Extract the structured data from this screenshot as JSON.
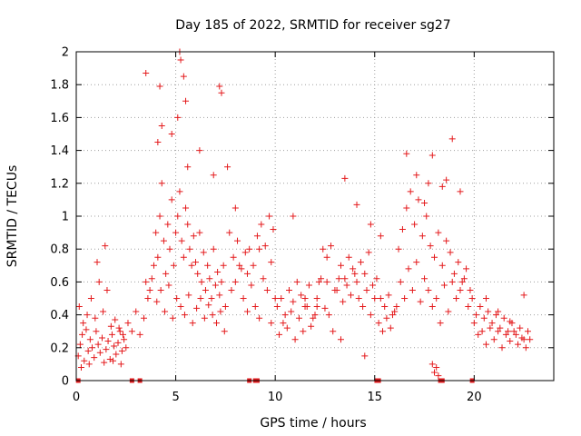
{
  "chart_data": {
    "type": "scatter",
    "title": "Day 185 of 2022, SRMTID for receiver sg27",
    "xlabel": "GPS time / hours",
    "ylabel": "SRMTID / TECUs",
    "xlim": [
      0,
      24
    ],
    "ylim": [
      0,
      2
    ],
    "xticks": [
      0,
      5,
      10,
      15,
      20
    ],
    "xtick_labels": [
      "0",
      "5",
      "10",
      "15",
      "20"
    ],
    "yticks": [
      0,
      0.2,
      0.4,
      0.6,
      0.8,
      1,
      1.2,
      1.4,
      1.6,
      1.8,
      2
    ],
    "ytick_labels": [
      "0",
      "0.2",
      "0.4",
      "0.6",
      "0.8",
      "1",
      "1.2",
      "1.4",
      "1.6",
      "1.8",
      "2"
    ],
    "grid": true,
    "marker": "+",
    "series": [
      {
        "name": "SRMTID",
        "color": "#e41a1c",
        "x": [
          0.1,
          0.2,
          0.3,
          0.4,
          0.5,
          0.6,
          0.7,
          0.8,
          0.9,
          1.0,
          1.1,
          1.2,
          1.3,
          1.4,
          1.5,
          1.6,
          1.7,
          1.8,
          1.9,
          2.0,
          2.1,
          2.2,
          2.3,
          2.4,
          2.5,
          0.15,
          0.35,
          0.55,
          0.75,
          0.95,
          1.15,
          1.35,
          1.55,
          1.75,
          1.95,
          2.15,
          2.35,
          0.25,
          0.65,
          1.05,
          1.45,
          1.85,
          2.25,
          2.6,
          2.8,
          3.0,
          3.2,
          3.4,
          3.5,
          3.7,
          3.9,
          4.0,
          4.1,
          4.2,
          4.3,
          4.4,
          4.5,
          4.6,
          4.7,
          4.8,
          4.9,
          5.0,
          5.1,
          5.2,
          5.3,
          5.4,
          5.5,
          5.6,
          5.7,
          5.8,
          5.9,
          6.0,
          6.1,
          6.2,
          6.3,
          6.4,
          6.5,
          6.6,
          6.7,
          6.8,
          6.9,
          7.0,
          7.1,
          7.2,
          7.3,
          7.4,
          7.5,
          3.6,
          3.8,
          4.05,
          4.25,
          4.45,
          4.65,
          4.85,
          5.05,
          5.25,
          5.45,
          5.65,
          5.85,
          6.05,
          6.25,
          6.45,
          6.65,
          6.85,
          7.05,
          7.25,
          7.45,
          3.5,
          4.2,
          5.2,
          5.25,
          5.4,
          5.5,
          7.2,
          7.3,
          4.1,
          4.3,
          4.8,
          5.1,
          5.6,
          6.2,
          6.9,
          7.6,
          7.8,
          8.0,
          8.2,
          8.4,
          8.6,
          8.8,
          9.0,
          9.2,
          9.4,
          9.6,
          9.8,
          10.0,
          7.7,
          7.9,
          8.1,
          8.3,
          8.5,
          8.7,
          8.9,
          9.1,
          9.3,
          9.5,
          9.7,
          9.9,
          8.0,
          8.6,
          9.2,
          9.8,
          10.1,
          10.3,
          10.5,
          10.7,
          10.9,
          11.1,
          11.3,
          11.5,
          11.7,
          11.9,
          12.1,
          12.3,
          12.5,
          12.7,
          12.9,
          10.2,
          10.4,
          10.6,
          10.8,
          11.0,
          11.2,
          11.4,
          11.6,
          11.8,
          12.0,
          12.2,
          12.4,
          12.6,
          12.8,
          10.9,
          11.5,
          12.1,
          12.6,
          13.0,
          13.2,
          13.4,
          13.6,
          13.8,
          14.0,
          14.2,
          14.4,
          14.6,
          14.8,
          15.0,
          15.2,
          15.4,
          15.6,
          15.8,
          16.0,
          13.1,
          13.3,
          13.5,
          13.7,
          13.9,
          14.1,
          14.3,
          14.5,
          14.7,
          14.9,
          15.1,
          15.3,
          15.5,
          15.7,
          15.9,
          13.5,
          14.1,
          14.8,
          15.3,
          13.3,
          14.5,
          16.1,
          16.3,
          16.5,
          16.7,
          16.9,
          17.1,
          17.3,
          17.5,
          17.7,
          17.9,
          18.1,
          18.3,
          18.5,
          18.7,
          18.9,
          19.1,
          19.3,
          19.5,
          19.7,
          19.9,
          16.2,
          16.4,
          16.6,
          16.8,
          17.0,
          17.2,
          17.4,
          17.6,
          17.8,
          18.0,
          18.2,
          18.4,
          18.6,
          18.8,
          19.0,
          19.2,
          19.4,
          19.6,
          19.8,
          16.6,
          17.1,
          17.5,
          17.7,
          17.9,
          18.4,
          18.6,
          18.9,
          19.3,
          17.9,
          18.0,
          18.1,
          18.2,
          20.0,
          20.2,
          20.4,
          20.6,
          20.8,
          21.0,
          21.2,
          21.4,
          21.6,
          21.8,
          22.0,
          22.2,
          22.4,
          22.6,
          22.8,
          20.1,
          20.3,
          20.5,
          20.7,
          20.9,
          21.1,
          21.3,
          21.5,
          21.7,
          21.9,
          22.1,
          22.3,
          22.5,
          22.7,
          20.6,
          21.2,
          21.8,
          22.5
        ],
        "y": [
          0.15,
          0.22,
          0.28,
          0.12,
          0.31,
          0.18,
          0.25,
          0.2,
          0.14,
          0.3,
          0.22,
          0.17,
          0.26,
          0.11,
          0.19,
          0.24,
          0.13,
          0.28,
          0.21,
          0.16,
          0.23,
          0.3,
          0.18,
          0.25,
          0.2,
          0.45,
          0.35,
          0.4,
          0.5,
          0.38,
          0.6,
          0.42,
          0.55,
          0.33,
          0.37,
          0.32,
          0.28,
          0.08,
          0.1,
          0.72,
          0.82,
          0.12,
          0.1,
          0.35,
          0.3,
          0.42,
          0.28,
          0.38,
          0.6,
          0.55,
          0.7,
          0.9,
          0.75,
          1.0,
          1.2,
          0.85,
          0.65,
          0.95,
          0.8,
          1.1,
          0.7,
          0.9,
          1.0,
          1.15,
          0.85,
          0.75,
          1.05,
          0.95,
          0.8,
          0.7,
          0.88,
          0.72,
          0.65,
          0.9,
          0.6,
          0.78,
          0.55,
          0.7,
          0.62,
          0.5,
          0.8,
          0.58,
          0.66,
          0.52,
          0.6,
          0.7,
          0.45,
          0.5,
          0.62,
          0.48,
          0.55,
          0.42,
          0.58,
          0.38,
          0.5,
          0.45,
          0.4,
          0.52,
          0.35,
          0.44,
          0.5,
          0.38,
          0.46,
          0.4,
          0.35,
          0.42,
          0.3,
          1.87,
          1.79,
          2.0,
          1.95,
          1.85,
          1.7,
          1.79,
          1.75,
          1.45,
          1.55,
          1.5,
          1.6,
          1.3,
          1.4,
          1.25,
          1.3,
          0.55,
          0.6,
          0.7,
          0.5,
          0.65,
          0.58,
          0.45,
          0.8,
          0.62,
          0.55,
          0.72,
          0.5,
          0.9,
          0.75,
          0.85,
          0.68,
          0.78,
          0.8,
          0.7,
          0.88,
          0.95,
          0.82,
          1.0,
          0.92,
          1.05,
          0.42,
          0.38,
          0.35,
          0.45,
          0.5,
          0.4,
          0.55,
          0.48,
          0.6,
          0.52,
          0.45,
          0.58,
          0.38,
          0.5,
          0.62,
          0.44,
          0.4,
          0.3,
          0.28,
          0.35,
          0.32,
          0.42,
          0.25,
          0.38,
          0.3,
          0.45,
          0.33,
          0.4,
          0.6,
          0.8,
          0.75,
          0.82,
          1.0,
          0.5,
          0.45,
          0.6,
          0.55,
          0.62,
          0.48,
          0.58,
          0.52,
          0.65,
          0.5,
          0.45,
          0.55,
          0.4,
          0.5,
          0.35,
          0.3,
          0.38,
          0.32,
          0.42,
          0.55,
          0.7,
          0.62,
          0.75,
          0.68,
          0.6,
          0.72,
          0.65,
          0.78,
          0.58,
          0.62,
          0.5,
          0.45,
          0.52,
          0.4,
          1.23,
          1.07,
          0.95,
          0.88,
          0.25,
          0.15,
          0.45,
          0.6,
          0.5,
          0.68,
          0.55,
          0.72,
          0.48,
          0.62,
          0.55,
          0.45,
          0.5,
          0.35,
          0.58,
          0.42,
          0.6,
          0.5,
          0.55,
          0.62,
          0.45,
          0.5,
          0.8,
          0.92,
          1.05,
          1.15,
          0.95,
          1.1,
          0.88,
          1.0,
          0.82,
          0.75,
          0.9,
          0.7,
          0.85,
          0.78,
          0.65,
          0.72,
          0.6,
          0.68,
          0.55,
          1.38,
          1.25,
          1.08,
          1.2,
          1.37,
          1.18,
          1.22,
          1.47,
          1.15,
          0.1,
          0.05,
          0.08,
          0.03,
          0.35,
          0.28,
          0.3,
          0.22,
          0.32,
          0.25,
          0.3,
          0.2,
          0.28,
          0.24,
          0.3,
          0.22,
          0.26,
          0.2,
          0.25,
          0.4,
          0.45,
          0.38,
          0.42,
          0.35,
          0.4,
          0.32,
          0.38,
          0.3,
          0.35,
          0.28,
          0.32,
          0.25,
          0.3,
          0.5,
          0.42,
          0.36,
          0.52
        ]
      }
    ],
    "gap_markers_x": [
      0.1,
      2.8,
      3.2,
      8.7,
      9.0,
      9.1,
      15.1,
      15.2,
      18.3,
      18.4,
      19.9
    ]
  }
}
